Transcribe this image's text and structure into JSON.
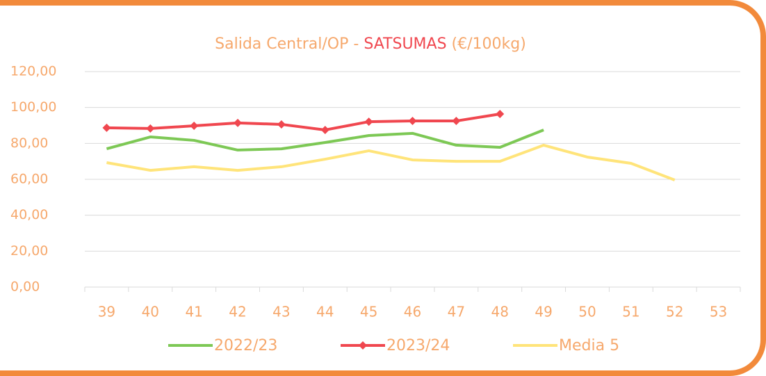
{
  "chart_data": {
    "type": "line",
    "title": {
      "prefix": "Salida Central/OP -",
      "highlight": "SATSUMAS",
      "suffix": "(€/100kg)"
    },
    "title_color": "#f6a86c",
    "highlight_color": "#f0474f",
    "categories": [
      "39",
      "40",
      "41",
      "42",
      "43",
      "44",
      "45",
      "46",
      "47",
      "48",
      "49",
      "50",
      "51",
      "52",
      "53"
    ],
    "series": [
      {
        "name": "2022/23",
        "color": "#7dc855",
        "marker": false,
        "values": [
          77,
          83.6,
          81.7,
          76.3,
          77,
          80.5,
          84.4,
          85.6,
          79,
          77.8,
          87.5,
          null,
          null,
          null,
          null
        ]
      },
      {
        "name": "2023/24",
        "color": "#f0474f",
        "marker": true,
        "values": [
          88.7,
          88.3,
          89.8,
          91.4,
          90.6,
          87.5,
          92.1,
          92.5,
          92.5,
          96.4,
          null,
          null,
          null,
          null,
          null
        ]
      },
      {
        "name": "Media 5",
        "color": "#ffe47a",
        "marker": false,
        "values": [
          69.3,
          65,
          67,
          65,
          67,
          71.2,
          75.9,
          70.8,
          70,
          70,
          79,
          72.4,
          68.9,
          59.6,
          null
        ]
      }
    ],
    "ylim": [
      0,
      120
    ],
    "yticks": [
      {
        "value": 0,
        "label": "0,00"
      },
      {
        "value": 20,
        "label": "20,00"
      },
      {
        "value": 40,
        "label": "40,00"
      },
      {
        "value": 60,
        "label": "60,00"
      },
      {
        "value": 80,
        "label": "80,00"
      },
      {
        "value": 100,
        "label": "100,00"
      },
      {
        "value": 120,
        "label": "120,00"
      }
    ],
    "grid": true,
    "legend": "bottom"
  }
}
